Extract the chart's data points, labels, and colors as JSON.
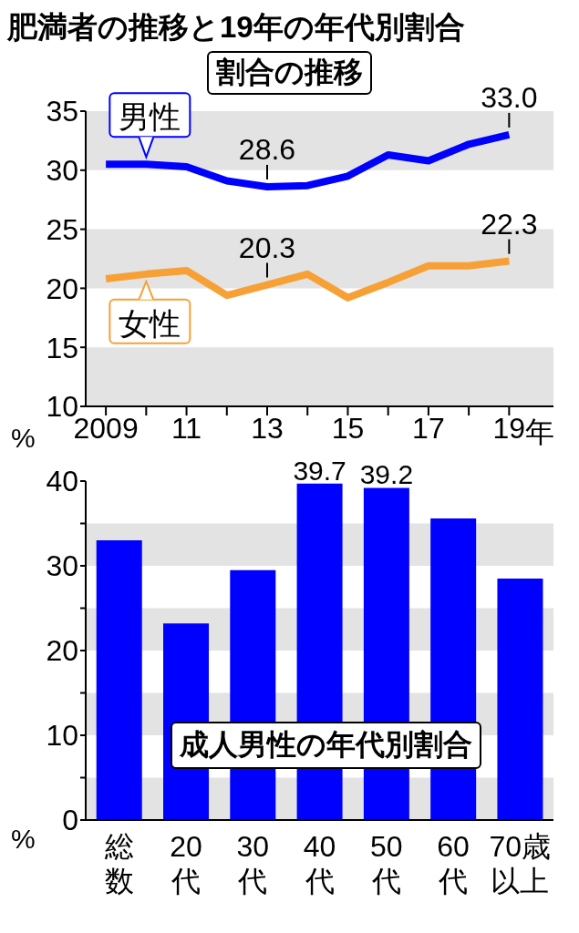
{
  "chart_data": [
    {
      "type": "line",
      "title": "肥満者の推移と19年の年代別割合",
      "subtitle": "割合の推移",
      "ylabel": "%",
      "x": [
        2009,
        2010,
        2011,
        2012,
        2013,
        2014,
        2015,
        2016,
        2017,
        2018,
        2019
      ],
      "series": [
        {
          "name": "男性",
          "color": "#0000ff",
          "values": [
            30.5,
            30.5,
            30.3,
            29.1,
            28.6,
            28.7,
            29.5,
            31.3,
            30.8,
            32.2,
            33.0
          ],
          "value_labels": [
            null,
            null,
            null,
            null,
            "28.6",
            null,
            null,
            null,
            null,
            null,
            "33.0"
          ]
        },
        {
          "name": "女性",
          "color": "#f7a035",
          "values": [
            20.8,
            21.2,
            21.5,
            19.4,
            20.3,
            21.2,
            19.2,
            20.5,
            21.9,
            21.9,
            22.3
          ],
          "value_labels": [
            null,
            null,
            null,
            null,
            "20.3",
            null,
            null,
            null,
            null,
            null,
            "22.3"
          ]
        }
      ],
      "xlim": [
        2008.5,
        2020.1
      ],
      "xticks": [
        {
          "value": 2009,
          "label": "2009"
        },
        {
          "value": 2010,
          "label": null
        },
        {
          "value": 2011,
          "label": "11"
        },
        {
          "value": 2012,
          "label": null
        },
        {
          "value": 2013,
          "label": "13"
        },
        {
          "value": 2014,
          "label": null
        },
        {
          "value": 2015,
          "label": "15"
        },
        {
          "value": 2016,
          "label": null
        },
        {
          "value": 2017,
          "label": "17"
        },
        {
          "value": 2018,
          "label": null
        },
        {
          "value": 2019,
          "label": "19"
        }
      ],
      "xlabel": "年",
      "ylim": [
        10,
        35
      ],
      "yticks": [
        10,
        15,
        20,
        25,
        30,
        35
      ],
      "bands": [
        {
          "axis": "y",
          "from": 10,
          "to": 15,
          "color": "#e3e3e3"
        },
        {
          "axis": "y",
          "from": 20,
          "to": 25,
          "color": "#e3e3e3"
        },
        {
          "axis": "y",
          "from": 30,
          "to": 35,
          "color": "#e3e3e3"
        }
      ]
    },
    {
      "type": "bar",
      "title": "成人男性の年代別割合",
      "ylabel": "%",
      "categories": [
        "総数",
        "20代",
        "30代",
        "40代",
        "50代",
        "60代",
        "70歳以上"
      ],
      "values": [
        33.0,
        23.2,
        29.5,
        39.7,
        39.2,
        35.6,
        28.5
      ],
      "color": "#0000ff",
      "value_labels": [
        null,
        null,
        null,
        "39.7",
        "39.2",
        null,
        null
      ],
      "ylim": [
        0,
        40
      ],
      "yticks": [
        0,
        {
          "value": 5,
          "label": null
        },
        10,
        {
          "value": 15,
          "label": null
        },
        20,
        {
          "value": 25,
          "label": null
        },
        30,
        {
          "value": 35,
          "label": null
        },
        40
      ],
      "bands": [
        {
          "axis": "y",
          "from": 0,
          "to": 5,
          "color": "#e3e3e3"
        },
        {
          "axis": "y",
          "from": 10,
          "to": 15,
          "color": "#e3e3e3"
        },
        {
          "axis": "y",
          "from": 20,
          "to": 25,
          "color": "#e3e3e3"
        },
        {
          "axis": "y",
          "from": 30,
          "to": 35,
          "color": "#e3e3e3"
        }
      ]
    }
  ]
}
